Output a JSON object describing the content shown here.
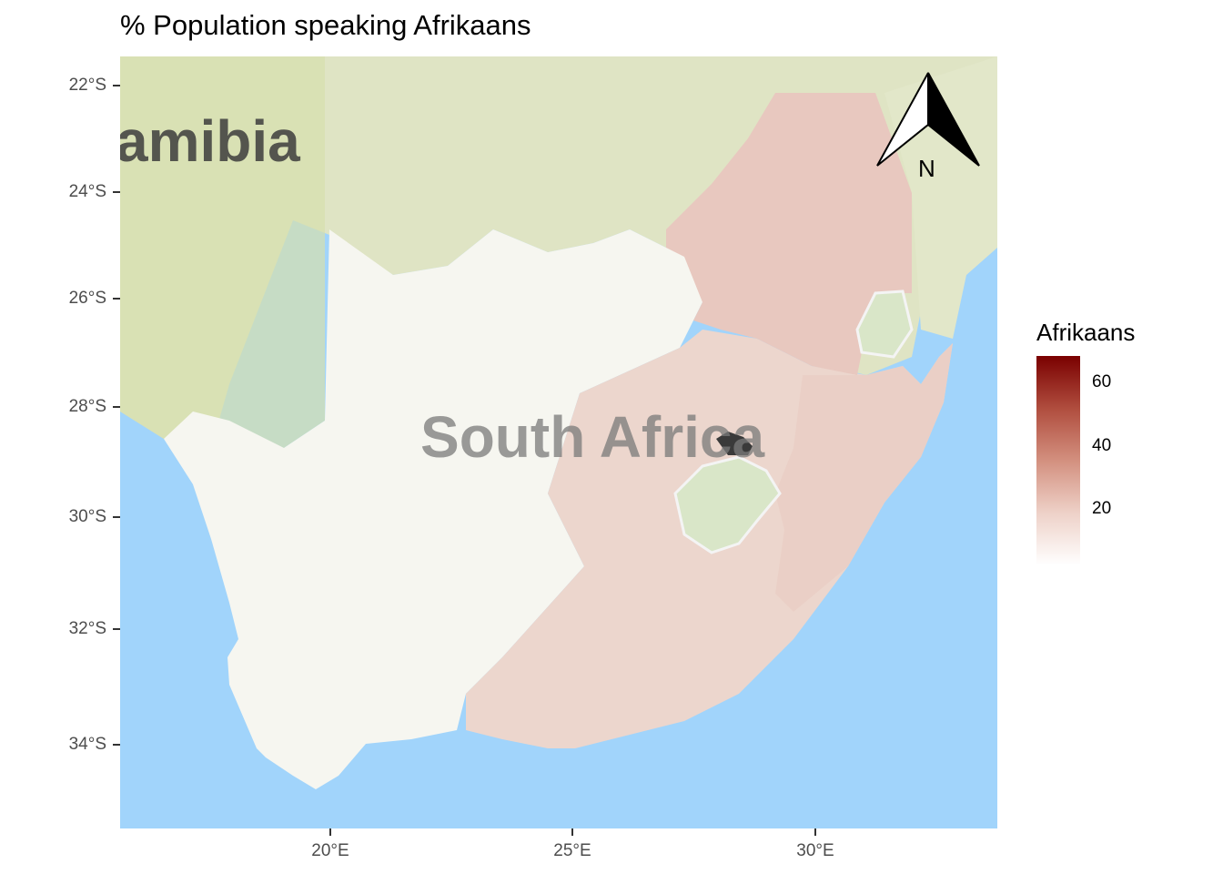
{
  "title": "% Population speaking Afrikaans",
  "map_labels": {
    "country_1": "amibia",
    "country_2": "South Africa"
  },
  "north_arrow": {
    "label": "N"
  },
  "axes": {
    "y_ticks": [
      "22°S",
      "24°S",
      "26°S",
      "28°S",
      "30°S",
      "32°S",
      "34°S"
    ],
    "x_ticks": [
      "20°E",
      "25°E",
      "30°E"
    ]
  },
  "legend": {
    "title": "Afrikaans",
    "labels": [
      "60",
      "40",
      "20"
    ],
    "range": [
      0,
      68
    ],
    "low_color": "#ffffff",
    "high_color": "#7a0000"
  },
  "colors": {
    "sea": "#a1d4fb",
    "land": "#dfe4c4",
    "region_low": "#f6f6f0",
    "region_mid": "#ecd6cd",
    "region_high": "#e8c8bf"
  }
}
